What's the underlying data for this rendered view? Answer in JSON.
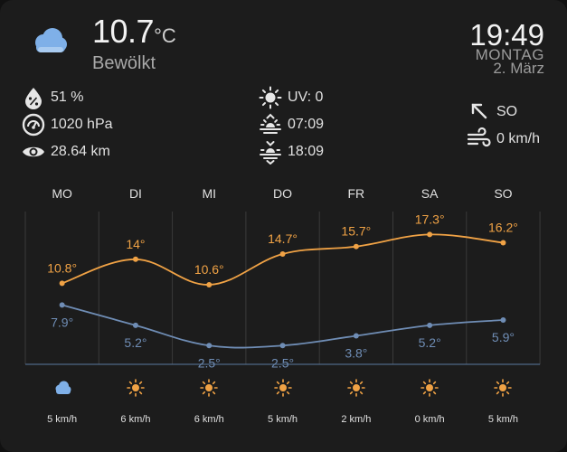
{
  "current": {
    "temperature": "10.7",
    "unit": "°C",
    "condition": "Bewölkt",
    "condition_icon": "cloud-icon"
  },
  "clock": {
    "time": "19:49",
    "weekday": "MONTAG",
    "date": "2. März"
  },
  "stats": {
    "humidity": "51 %",
    "pressure": "1020 hPa",
    "visibility": "28.64 km",
    "uv": "UV: 0",
    "sunrise": "07:09",
    "sunset": "18:09",
    "wind_direction": "SO",
    "wind_speed": "0 km/h"
  },
  "colors": {
    "high_line": "#f0a245",
    "low_line": "#6f8db5",
    "sun_icon": "#f0a245",
    "cloud_icon": "#7fb0e8"
  },
  "forecast": {
    "days": [
      {
        "day": "MO",
        "icon": "cloud-icon",
        "wind": "5 km/h"
      },
      {
        "day": "DI",
        "icon": "sun-icon",
        "wind": "6 km/h"
      },
      {
        "day": "MI",
        "icon": "sun-icon",
        "wind": "6 km/h"
      },
      {
        "day": "DO",
        "icon": "sun-icon",
        "wind": "5 km/h"
      },
      {
        "day": "FR",
        "icon": "sun-icon",
        "wind": "2 km/h"
      },
      {
        "day": "SA",
        "icon": "sun-icon",
        "wind": "0 km/h"
      },
      {
        "day": "SO",
        "icon": "sun-icon",
        "wind": "5 km/h"
      }
    ]
  },
  "chart_data": {
    "type": "line",
    "categories": [
      "MO",
      "DI",
      "MI",
      "DO",
      "FR",
      "SA",
      "SO"
    ],
    "series": [
      {
        "values": [
          10.8,
          14,
          10.6,
          14.7,
          15.7,
          17.3,
          16.2
        ],
        "labels": [
          "10.8°",
          "14°",
          "10.6°",
          "14.7°",
          "15.7°",
          "17.3°",
          "16.2°"
        ]
      },
      {
        "values": [
          7.9,
          5.2,
          2.5,
          2.5,
          3.8,
          5.2,
          5.9
        ],
        "labels": [
          "7.9°",
          "5.2°",
          "2.5°",
          "2.5°",
          "3.8°",
          "5.2°",
          "5.9°"
        ]
      }
    ],
    "ylim": [
      0,
      20
    ],
    "grid": "vertical"
  }
}
